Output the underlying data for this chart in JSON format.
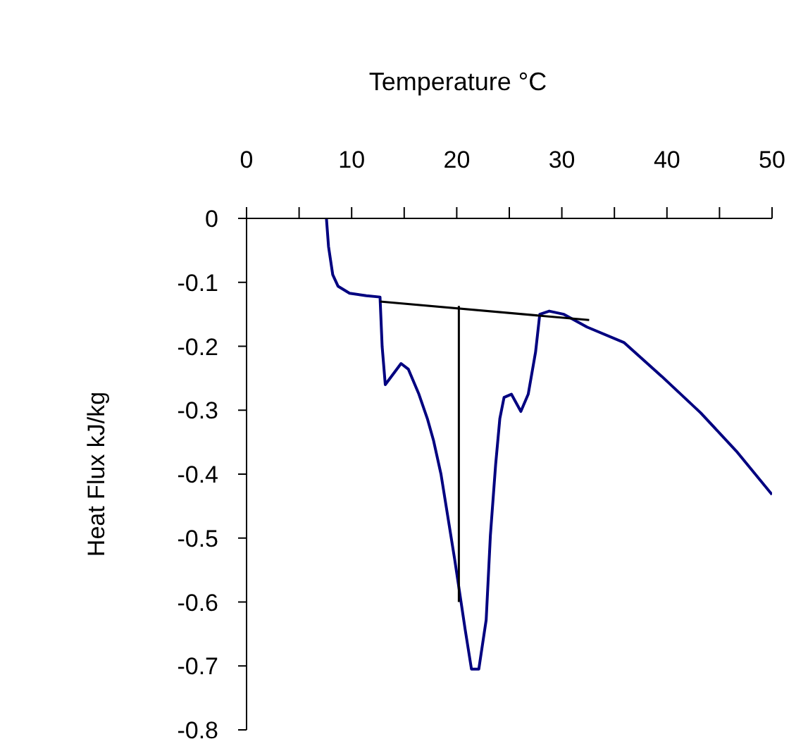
{
  "chart_data": {
    "type": "line",
    "xlabel": "Temperature °C",
    "ylabel": "Heat Flux kJ/kg",
    "xlim": [
      0,
      50
    ],
    "xticks": [
      0,
      {
        "value": 5,
        "label": null
      },
      10,
      {
        "value": 15,
        "label": null
      },
      20,
      {
        "value": 25,
        "label": null
      },
      30,
      {
        "value": 35,
        "label": null
      },
      40,
      {
        "value": 45,
        "label": null
      },
      50
    ],
    "ylim": [
      -0.8,
      0
    ],
    "yticks": [
      0,
      -0.1,
      -0.2,
      -0.3,
      -0.4,
      -0.5,
      -0.6,
      -0.7,
      -0.8
    ],
    "marker": "none",
    "series": [
      {
        "color": "#000080",
        "x": [
          7.6,
          7.8,
          8.2,
          8.7,
          9.8,
          11.4,
          12.7,
          12.9,
          13.2,
          14.7,
          15.4,
          16.4,
          17.2,
          17.8,
          18.5,
          19.8,
          20.8,
          21.4,
          22.1,
          22.8,
          23.2,
          23.7,
          24.1,
          24.5,
          25.2,
          26.1,
          26.8,
          27.5,
          27.9,
          28.8,
          30.2,
          32.4,
          35.9,
          39.5,
          43.2,
          46.6,
          50
        ],
        "values": [
          0,
          -0.044,
          -0.088,
          -0.106,
          -0.117,
          -0.121,
          -0.123,
          -0.2,
          -0.26,
          -0.227,
          -0.236,
          -0.275,
          -0.313,
          -0.348,
          -0.4,
          -0.533,
          -0.643,
          -0.705,
          -0.705,
          -0.628,
          -0.496,
          -0.385,
          -0.313,
          -0.28,
          -0.275,
          -0.302,
          -0.275,
          -0.209,
          -0.15,
          -0.145,
          -0.15,
          -0.17,
          -0.194,
          -0.247,
          -0.304,
          -0.364,
          -0.432
        ]
      },
      {
        "color": "#000000",
        "x": [
          12.7,
          32.6
        ],
        "values": [
          -0.13,
          -0.159
        ]
      },
      {
        "color": "#000000",
        "x": [
          20.2,
          20.2
        ],
        "values": [
          -0.137,
          -0.6
        ]
      }
    ]
  }
}
